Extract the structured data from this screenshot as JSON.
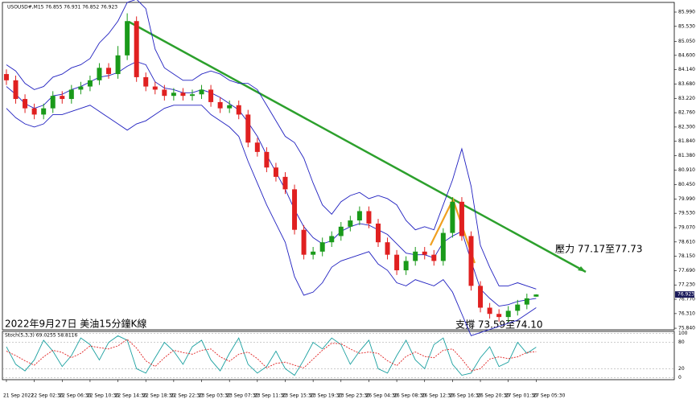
{
  "chart_data": {
    "type": "candlestick",
    "header": "USOUSD#,M15 76.855 76.931 76.852 76.923",
    "up_color": "#1a9a1a",
    "down_color": "#e02020",
    "categories": [
      "21 Sep 2022",
      null,
      null,
      "22 Sep 02:30",
      null,
      null,
      "22 Sep 06:30",
      null,
      null,
      "22 Sep 10:30",
      null,
      null,
      "22 Sep 14:30",
      null,
      null,
      "22 Sep 18:30",
      null,
      null,
      "22 Sep 22:30",
      null,
      null,
      "23 Sep 03:30",
      null,
      null,
      "23 Sep 07:30",
      null,
      null,
      "23 Sep 11:30",
      null,
      null,
      "23 Sep 15:30",
      null,
      null,
      "23 Sep 19:30",
      null,
      null,
      "23 Sep 23:30",
      null,
      null,
      "26 Sep 04:30",
      null,
      null,
      "26 Sep 08:30",
      null,
      null,
      "26 Sep 12:30",
      null,
      null,
      "26 Sep 16:30",
      null,
      null,
      "26 Sep 20:30",
      null,
      null,
      "27 Sep 01:30",
      null,
      null,
      "27 Sep 05:30"
    ],
    "open": [
      84.0,
      83.8,
      83.2,
      82.9,
      82.7,
      82.9,
      83.3,
      83.2,
      83.5,
      83.6,
      83.8,
      84.2,
      84.0,
      84.6,
      85.7,
      83.9,
      83.6,
      83.5,
      83.3,
      83.4,
      83.3,
      83.35,
      83.5,
      83.1,
      82.9,
      83.0,
      82.7,
      81.8,
      81.5,
      81.0,
      80.7,
      80.3,
      79.0,
      78.2,
      78.3,
      78.6,
      78.8,
      79.1,
      79.3,
      79.6,
      79.2,
      78.6,
      78.2,
      77.7,
      78.0,
      78.3,
      78.2,
      78.0,
      78.9,
      79.9,
      78.8,
      77.2,
      76.5,
      76.3,
      76.2,
      76.4,
      76.6,
      76.855
    ],
    "high": [
      84.15,
      83.95,
      83.35,
      83.05,
      83.05,
      83.45,
      83.45,
      83.65,
      83.75,
      83.95,
      84.35,
      84.35,
      84.9,
      85.95,
      85.85,
      84.05,
      83.75,
      83.65,
      83.55,
      83.55,
      83.5,
      83.65,
      83.65,
      83.25,
      83.15,
      83.15,
      82.85,
      81.95,
      81.65,
      81.15,
      80.85,
      80.45,
      79.15,
      78.45,
      78.75,
      78.95,
      79.25,
      79.45,
      79.75,
      79.75,
      79.35,
      78.75,
      78.35,
      78.15,
      78.45,
      78.45,
      78.35,
      79.05,
      80.05,
      80.05,
      78.95,
      77.35,
      76.65,
      76.45,
      76.55,
      76.75,
      76.95,
      76.931
    ],
    "low": [
      83.65,
      83.05,
      82.75,
      82.55,
      82.55,
      82.75,
      83.05,
      83.05,
      83.35,
      83.45,
      83.65,
      83.85,
      83.85,
      84.45,
      83.75,
      83.45,
      83.35,
      83.15,
      83.15,
      83.15,
      83.15,
      83.2,
      82.95,
      82.75,
      82.75,
      82.55,
      81.65,
      81.35,
      80.85,
      80.55,
      80.15,
      78.85,
      78.05,
      78.05,
      78.15,
      78.45,
      78.65,
      78.95,
      79.15,
      79.05,
      78.45,
      78.05,
      77.55,
      77.55,
      77.85,
      78.05,
      77.85,
      77.85,
      78.75,
      78.65,
      77.05,
      76.35,
      76.15,
      76.05,
      76.05,
      76.25,
      76.45,
      76.852
    ],
    "close": [
      83.8,
      83.2,
      82.9,
      82.7,
      82.9,
      83.3,
      83.2,
      83.5,
      83.6,
      83.8,
      84.2,
      84.0,
      84.6,
      85.7,
      83.9,
      83.6,
      83.5,
      83.3,
      83.4,
      83.3,
      83.35,
      83.5,
      83.1,
      82.9,
      83.0,
      82.7,
      81.8,
      81.5,
      81.0,
      80.7,
      80.3,
      79.0,
      78.2,
      78.3,
      78.6,
      78.8,
      79.1,
      79.3,
      79.6,
      79.2,
      78.6,
      78.2,
      77.7,
      78.0,
      78.3,
      78.2,
      78.0,
      78.9,
      79.9,
      78.8,
      77.2,
      76.5,
      76.3,
      76.2,
      76.4,
      76.6,
      76.8,
      76.923
    ],
    "bands": {
      "color": "#2020c0",
      "upper": [
        84.3,
        84.1,
        83.7,
        83.5,
        83.6,
        83.9,
        84.0,
        84.2,
        84.3,
        84.5,
        85.0,
        85.3,
        85.7,
        86.3,
        86.4,
        86.1,
        84.8,
        84.2,
        84.0,
        83.8,
        83.8,
        84.0,
        84.1,
        84.0,
        83.8,
        83.7,
        83.7,
        83.5,
        83.0,
        82.5,
        82.0,
        81.8,
        81.3,
        80.5,
        79.8,
        79.5,
        79.9,
        80.1,
        80.2,
        80.0,
        80.1,
        80.0,
        79.8,
        79.3,
        79.0,
        79.1,
        79.0,
        79.8,
        80.6,
        81.6,
        80.4,
        78.5,
        77.8,
        77.2,
        77.2,
        77.3,
        77.2,
        77.1
      ],
      "middle": [
        83.6,
        83.35,
        83.05,
        82.9,
        83.0,
        83.3,
        83.35,
        83.5,
        83.6,
        83.75,
        83.9,
        83.95,
        84.05,
        84.25,
        84.4,
        84.3,
        83.75,
        83.55,
        83.5,
        83.4,
        83.4,
        83.5,
        83.4,
        83.25,
        83.05,
        82.85,
        82.45,
        82.0,
        81.4,
        80.85,
        80.3,
        79.65,
        79.1,
        78.75,
        78.55,
        78.65,
        78.95,
        79.1,
        79.2,
        79.15,
        79.0,
        78.85,
        78.55,
        78.25,
        78.2,
        78.2,
        78.1,
        78.6,
        78.8,
        78.95,
        78.0,
        77.1,
        76.8,
        76.55,
        76.6,
        76.7,
        76.75,
        76.8
      ],
      "lower": [
        82.9,
        82.6,
        82.4,
        82.3,
        82.4,
        82.7,
        82.7,
        82.8,
        82.9,
        83.0,
        82.8,
        82.6,
        82.4,
        82.2,
        82.4,
        82.5,
        82.7,
        82.9,
        83.0,
        83.0,
        83.0,
        83.0,
        82.7,
        82.5,
        82.3,
        82.0,
        81.2,
        80.5,
        79.8,
        79.2,
        78.6,
        77.5,
        76.9,
        77.0,
        77.3,
        77.8,
        78.0,
        78.1,
        78.2,
        78.3,
        77.9,
        77.7,
        77.3,
        77.2,
        77.4,
        77.3,
        77.2,
        77.4,
        77.0,
        76.3,
        75.6,
        75.7,
        75.8,
        75.9,
        76.0,
        76.1,
        76.3,
        76.5
      ]
    },
    "xlim": [
      -0.43,
      71.86
    ],
    "ylim": [
      75.79,
      86.3
    ],
    "yticks": [
      {
        "value": 85.99,
        "label": "85.990"
      },
      {
        "value": 85.53,
        "label": "85.530"
      },
      {
        "value": 85.05,
        "label": "85.050"
      },
      {
        "value": 84.6,
        "label": "84.600"
      },
      {
        "value": 84.14,
        "label": "84.140"
      },
      {
        "value": 83.68,
        "label": "83.680"
      },
      {
        "value": 83.22,
        "label": "83.220"
      },
      {
        "value": 82.76,
        "label": "82.760"
      },
      {
        "value": 82.3,
        "label": "82.300"
      },
      {
        "value": 81.84,
        "label": "81.840"
      },
      {
        "value": 81.38,
        "label": "81.380"
      },
      {
        "value": 80.91,
        "label": "80.910"
      },
      {
        "value": 80.45,
        "label": "80.450"
      },
      {
        "value": 79.99,
        "label": "79.990"
      },
      {
        "value": 79.53,
        "label": "79.530"
      },
      {
        "value": 79.07,
        "label": "79.070"
      },
      {
        "value": 78.61,
        "label": "78.610"
      },
      {
        "value": 78.15,
        "label": "78.150"
      },
      {
        "value": 77.69,
        "label": "77.690"
      },
      {
        "value": 77.23,
        "label": "77.230"
      },
      {
        "value": 76.77,
        "label": "76.770"
      },
      {
        "value": 76.31,
        "label": "76.310"
      },
      {
        "value": 75.84,
        "label": "75.840"
      }
    ],
    "annotations": [
      "2022年9月27日 美油15分鐘K線",
      "壓力 77.17至77.73",
      "支撐 73.59至74.10"
    ],
    "stochastic": {
      "title": "Stoch(5,3,3) 69.0255 58.8116",
      "main_color": "#1aa0a0",
      "signal_color": "#e02020",
      "main": [
        70,
        30,
        15,
        40,
        85,
        60,
        25,
        50,
        90,
        75,
        40,
        80,
        95,
        85,
        20,
        10,
        45,
        80,
        60,
        30,
        70,
        85,
        40,
        15,
        55,
        90,
        30,
        10,
        25,
        60,
        20,
        5,
        40,
        80,
        65,
        90,
        75,
        30,
        60,
        85,
        20,
        10,
        50,
        85,
        40,
        20,
        75,
        90,
        30,
        5,
        10,
        45,
        70,
        25,
        35,
        80,
        55,
        69.0255
      ],
      "signal": [
        60,
        50,
        38,
        28,
        47,
        62,
        57,
        45,
        55,
        72,
        68,
        65,
        72,
        87,
        67,
        38,
        25,
        45,
        62,
        57,
        53,
        62,
        65,
        47,
        37,
        53,
        58,
        43,
        22,
        32,
        35,
        28,
        22,
        42,
        62,
        78,
        77,
        65,
        55,
        58,
        55,
        38,
        27,
        48,
        58,
        48,
        45,
        62,
        65,
        42,
        15,
        20,
        42,
        47,
        43,
        47,
        57,
        58.8116
      ],
      "ylim": [
        -5,
        105
      ],
      "yticks": [
        100,
        80,
        20,
        0
      ]
    }
  }
}
